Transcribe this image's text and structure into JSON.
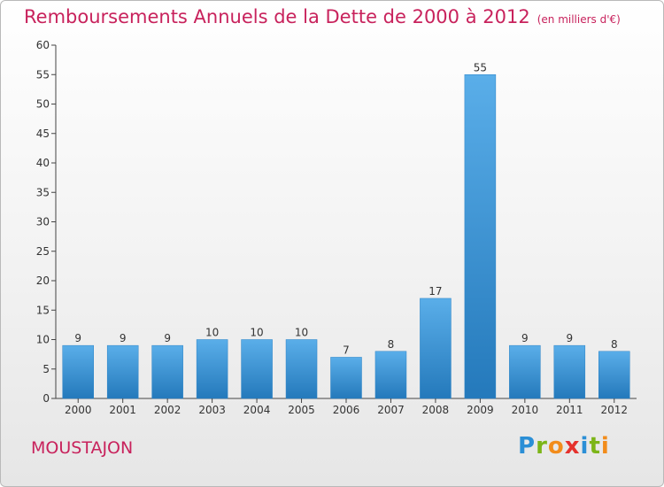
{
  "chart_data": {
    "type": "bar",
    "title": "Remboursements Annuels de la Dette de 2000 à 2012",
    "unit": "(en milliers d'€)",
    "categories": [
      "2000",
      "2001",
      "2002",
      "2003",
      "2004",
      "2005",
      "2006",
      "2007",
      "2008",
      "2009",
      "2010",
      "2011",
      "2012"
    ],
    "values": [
      9,
      9,
      9,
      10,
      10,
      10,
      7,
      8,
      17,
      55,
      9,
      9,
      8
    ],
    "ylim": [
      0,
      60
    ],
    "yticks": [
      0,
      5,
      10,
      15,
      20,
      25,
      30,
      35,
      40,
      45,
      50,
      55,
      60
    ],
    "grid": false,
    "legend": "none",
    "bar_color": "#3d97da"
  },
  "commune": "MOUSTAJON",
  "brand": "Proxiti",
  "colors": {
    "title": "#c8225c",
    "bar_top": "#5aaee9",
    "bar_bottom": "#2479bb"
  }
}
